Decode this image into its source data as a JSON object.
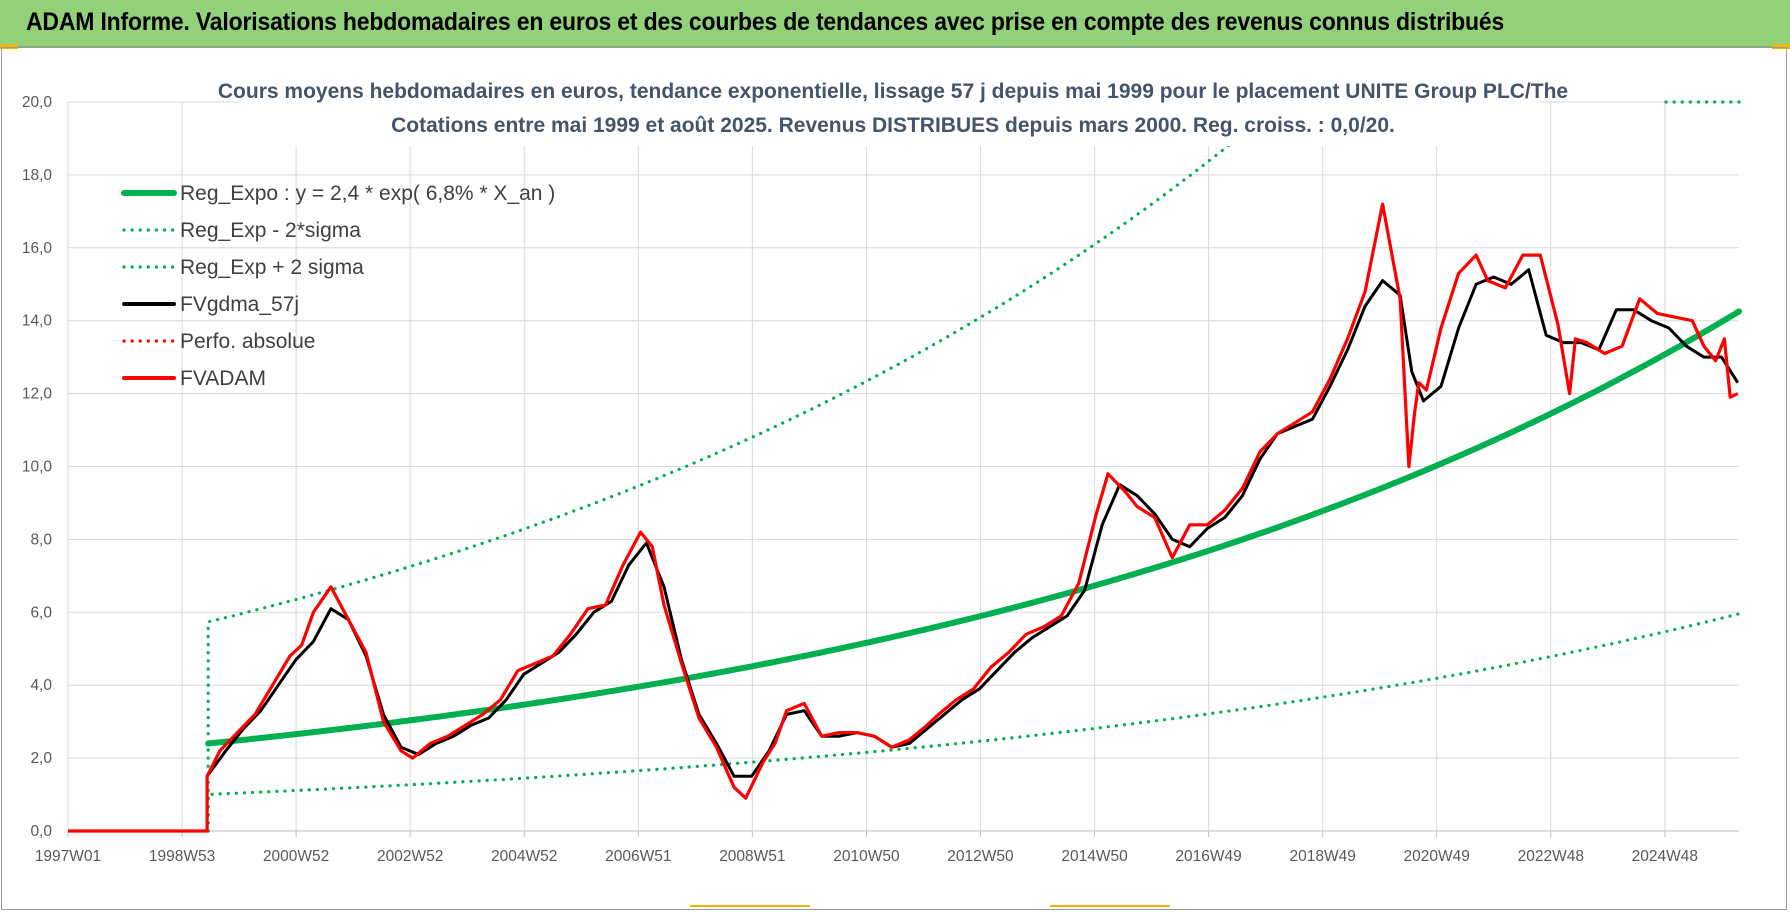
{
  "header": {
    "title": "ADAM Informe. Valorisations hebdomadaires en euros et des courbes de tendances avec prise en compte des revenus connus distribués"
  },
  "colors": {
    "header_bg": "#92d07a",
    "reg_expo": "#00b050",
    "sigma_bands": "#00b050",
    "fvgdma": "#000000",
    "fvadam": "#ff0000",
    "perfo": "#ff0000"
  },
  "chart_data": {
    "type": "line",
    "title_line1": "Cours moyens hebdomadaires en euros, tendance exponentielle, lissage 57 j depuis mai 1999 pour le placement UNITE Group PLC/The",
    "title_line2": "Cotations entre mai 1999 et août 2025. Revenus DISTRIBUES depuis mars 2000. Reg. croiss. : 0,0/20.",
    "xlabel": "",
    "ylabel": "",
    "ylim": [
      0,
      20
    ],
    "yticks": [
      "0,0",
      "2,0",
      "4,0",
      "6,0",
      "8,0",
      "10,0",
      "12,0",
      "14,0",
      "16,0",
      "18,0",
      "20,0"
    ],
    "xticks": [
      "1997W01",
      "1998W53",
      "2000W52",
      "2002W52",
      "2004W52",
      "2006W51",
      "2008W51",
      "2010W50",
      "2012W50",
      "2014W50",
      "2016W49",
      "2018W49",
      "2020W49",
      "2022W48",
      "2024W48"
    ],
    "grid": true,
    "legend_position": "top-left",
    "legend": [
      {
        "label": "Reg_Expo : y = 2,4 * exp( 6,8% *  X_an )",
        "style": "solid-thick",
        "color": "#00b050"
      },
      {
        "label": "Reg_Exp - 2*sigma",
        "style": "dotted",
        "color": "#00b050"
      },
      {
        "label": "Reg_Exp + 2 sigma",
        "style": "dotted",
        "color": "#00b050"
      },
      {
        "label": "FVgdma_57j",
        "style": "solid",
        "color": "#000000"
      },
      {
        "label": "Perfo. absolue",
        "style": "dotted",
        "color": "#ff0000"
      },
      {
        "label": "FVADAM",
        "style": "solid",
        "color": "#ff0000"
      }
    ],
    "trend_params": {
      "a": 2.4,
      "rate": 0.068,
      "start_year": 1999.4,
      "minus_2sigma_factor": 0.418,
      "plus_2sigma_factor": 2.39
    },
    "series_fvadam": {
      "x": [
        1997.0,
        1999.38,
        1999.38,
        1999.6,
        1999.9,
        2000.2,
        2000.5,
        2000.8,
        2001.0,
        2001.2,
        2001.5,
        2001.8,
        2002.1,
        2002.4,
        2002.7,
        2002.9,
        2003.2,
        2003.5,
        2003.8,
        2004.1,
        2004.4,
        2004.7,
        2005.0,
        2005.3,
        2005.6,
        2005.9,
        2006.2,
        2006.5,
        2006.8,
        2007.0,
        2007.2,
        2007.5,
        2007.8,
        2008.1,
        2008.4,
        2008.6,
        2008.9,
        2009.1,
        2009.3,
        2009.6,
        2009.9,
        2010.2,
        2010.5,
        2010.8,
        2011.1,
        2011.4,
        2011.7,
        2011.9,
        2012.2,
        2012.5,
        2012.8,
        2013.1,
        2013.4,
        2013.7,
        2014.0,
        2014.3,
        2014.6,
        2014.8,
        2015.1,
        2015.3,
        2015.6,
        2015.9,
        2016.2,
        2016.5,
        2016.8,
        2017.1,
        2017.4,
        2017.7,
        2018.0,
        2018.3,
        2018.6,
        2018.9,
        2019.2,
        2019.5,
        2019.8,
        2019.95,
        2020.05,
        2020.12,
        2020.25,
        2020.5,
        2020.8,
        2021.1,
        2021.3,
        2021.6,
        2021.9,
        2022.2,
        2022.5,
        2022.7,
        2022.8,
        2023.0,
        2023.3,
        2023.6,
        2023.9,
        2024.2,
        2024.5,
        2024.8,
        2025.0,
        2025.2,
        2025.35,
        2025.45,
        2025.58
      ],
      "y": [
        0,
        0,
        1.5,
        2.2,
        2.7,
        3.2,
        4.0,
        4.8,
        5.1,
        6.0,
        6.7,
        5.8,
        4.9,
        3.0,
        2.2,
        2.0,
        2.4,
        2.6,
        2.9,
        3.2,
        3.6,
        4.4,
        4.6,
        4.8,
        5.4,
        6.1,
        6.2,
        7.3,
        8.2,
        7.8,
        6.2,
        4.6,
        3.1,
        2.3,
        1.2,
        0.9,
        1.9,
        2.4,
        3.3,
        3.5,
        2.6,
        2.7,
        2.7,
        2.6,
        2.3,
        2.5,
        2.9,
        3.2,
        3.6,
        3.9,
        4.5,
        4.9,
        5.4,
        5.6,
        5.9,
        6.8,
        8.7,
        9.8,
        9.3,
        8.9,
        8.6,
        7.5,
        8.4,
        8.4,
        8.8,
        9.4,
        10.4,
        10.9,
        11.2,
        11.5,
        12.4,
        13.5,
        14.8,
        17.2,
        14.6,
        10.0,
        11.5,
        12.3,
        12.1,
        13.8,
        15.3,
        15.8,
        15.1,
        14.9,
        15.8,
        15.8,
        13.9,
        12.0,
        13.5,
        13.4,
        13.1,
        13.3,
        14.6,
        14.2,
        14.1,
        14.0,
        13.3,
        12.9,
        13.5,
        11.9,
        12.0
      ]
    },
    "series_fvgdma": {
      "x": [
        1999.38,
        1999.7,
        2000.0,
        2000.3,
        2000.6,
        2000.9,
        2001.2,
        2001.5,
        2001.8,
        2002.1,
        2002.4,
        2002.7,
        2003.0,
        2003.3,
        2003.6,
        2003.9,
        2004.2,
        2004.5,
        2004.8,
        2005.1,
        2005.4,
        2005.7,
        2006.0,
        2006.3,
        2006.6,
        2006.9,
        2007.2,
        2007.5,
        2007.8,
        2008.1,
        2008.4,
        2008.7,
        2009.0,
        2009.3,
        2009.6,
        2009.9,
        2010.2,
        2010.5,
        2010.8,
        2011.1,
        2011.4,
        2011.7,
        2012.0,
        2012.3,
        2012.6,
        2012.9,
        2013.2,
        2013.5,
        2013.8,
        2014.1,
        2014.4,
        2014.7,
        2015.0,
        2015.3,
        2015.6,
        2015.9,
        2016.2,
        2016.5,
        2016.8,
        2017.1,
        2017.4,
        2017.7,
        2018.0,
        2018.3,
        2018.6,
        2018.9,
        2019.2,
        2019.5,
        2019.8,
        2020.0,
        2020.2,
        2020.5,
        2020.8,
        2021.1,
        2021.4,
        2021.7,
        2022.0,
        2022.3,
        2022.6,
        2022.9,
        2023.2,
        2023.5,
        2023.8,
        2024.1,
        2024.4,
        2024.7,
        2025.0,
        2025.3,
        2025.58
      ],
      "y": [
        1.5,
        2.2,
        2.8,
        3.3,
        4.0,
        4.7,
        5.2,
        6.1,
        5.8,
        4.8,
        3.2,
        2.3,
        2.1,
        2.4,
        2.6,
        2.9,
        3.1,
        3.6,
        4.3,
        4.6,
        4.9,
        5.4,
        6.0,
        6.3,
        7.3,
        7.9,
        6.7,
        4.7,
        3.2,
        2.4,
        1.5,
        1.5,
        2.2,
        3.2,
        3.3,
        2.6,
        2.6,
        2.7,
        2.6,
        2.3,
        2.4,
        2.8,
        3.2,
        3.6,
        3.9,
        4.4,
        4.9,
        5.3,
        5.6,
        5.9,
        6.6,
        8.4,
        9.5,
        9.2,
        8.7,
        8.0,
        7.8,
        8.3,
        8.6,
        9.2,
        10.2,
        10.9,
        11.1,
        11.3,
        12.2,
        13.2,
        14.4,
        15.1,
        14.7,
        12.6,
        11.8,
        12.2,
        13.8,
        15.0,
        15.2,
        15.0,
        15.4,
        13.6,
        13.4,
        13.4,
        13.2,
        14.3,
        14.3,
        14.0,
        13.8,
        13.3,
        13.0,
        13.0,
        12.3
      ]
    }
  }
}
